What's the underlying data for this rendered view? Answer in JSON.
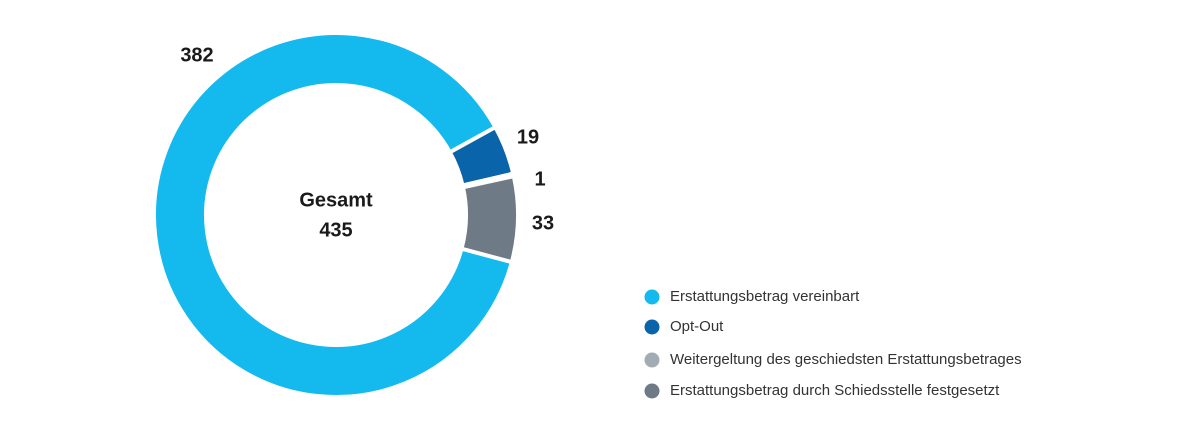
{
  "chart_data": {
    "type": "donut",
    "center_label": "Gesamt",
    "total": 435,
    "series": [
      {
        "name": "Erstattungsbetrag vereinbart",
        "color": "#14b9ee",
        "values": [
          382
        ]
      },
      {
        "name": "Opt-Out",
        "color": "#0a64aa",
        "values": [
          19
        ]
      },
      {
        "name": "Weitergeltung des geschiedsten Erstattungsbetrages",
        "color": "#a3abb3",
        "values": [
          1
        ]
      },
      {
        "name": "Erstattungsbetrag durch Schiedsstelle festgesetzt",
        "color": "#6e7a85",
        "values": [
          33
        ]
      }
    ]
  }
}
